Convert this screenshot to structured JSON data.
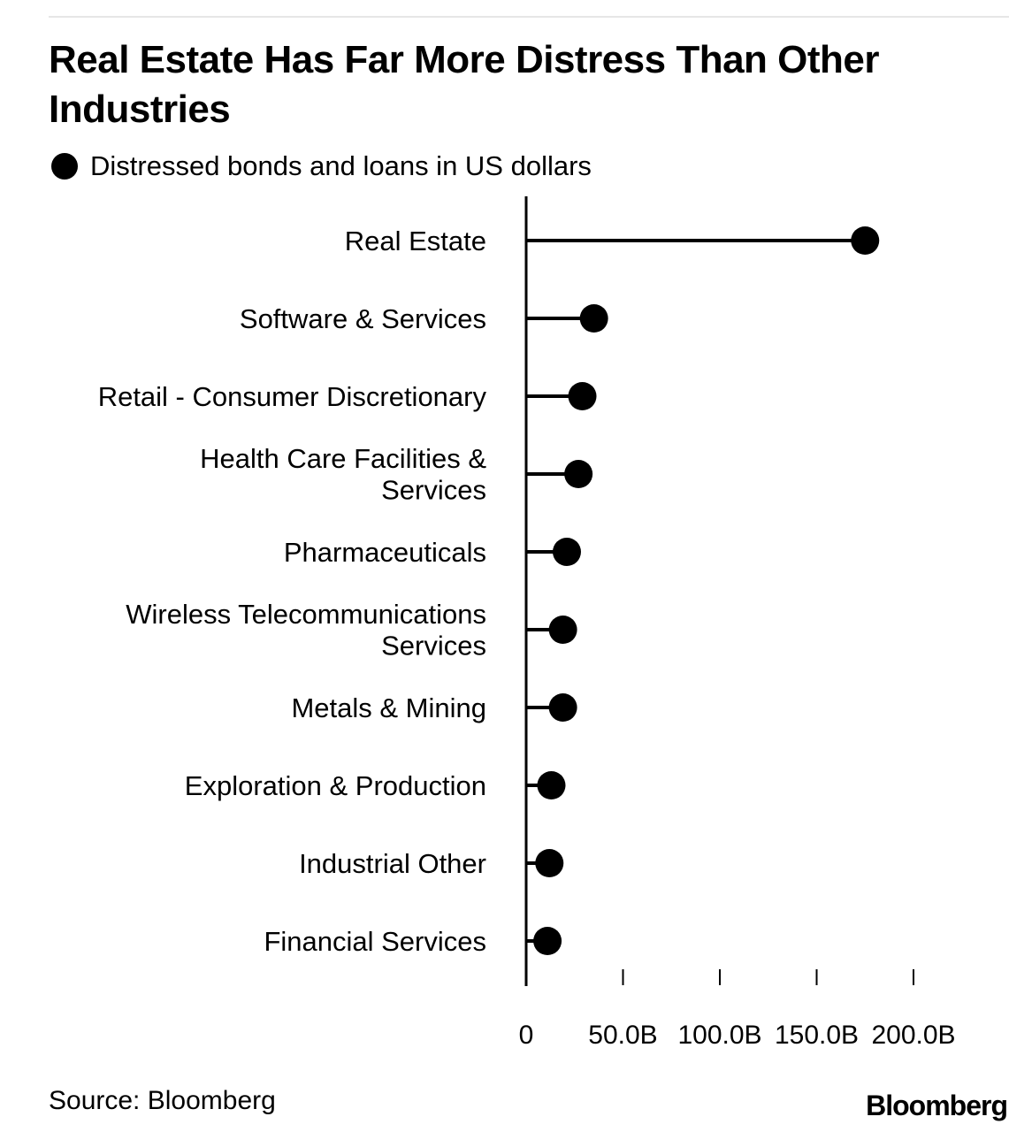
{
  "title": "Real Estate Has Far More Distress Than Other Industries",
  "legend": {
    "label": "Distressed bonds and loans in US dollars"
  },
  "source": "Source: Bloomberg",
  "brand": "Bloomberg",
  "chart_data": {
    "type": "lollipop",
    "orientation": "horizontal",
    "title": "Real Estate Has Far More Distress Than Other Industries",
    "series": [
      {
        "name": "Distressed bonds and loans in US dollars"
      }
    ],
    "categories": [
      [
        "Real Estate"
      ],
      [
        "Software & Services"
      ],
      [
        "Retail - Consumer Discretionary"
      ],
      [
        "Health Care Facilities &",
        "Services"
      ],
      [
        "Pharmaceuticals"
      ],
      [
        "Wireless Telecommunications",
        "Services"
      ],
      [
        "Metals & Mining"
      ],
      [
        "Exploration & Production"
      ],
      [
        "Industrial Other"
      ],
      [
        "Financial Services"
      ]
    ],
    "values": [
      175,
      35,
      29,
      27,
      21,
      19,
      19,
      13,
      12,
      11
    ],
    "unit": "billion USD",
    "xlim": [
      0,
      200
    ],
    "ticks": [
      0,
      50,
      100,
      150,
      200
    ],
    "tick_labels": [
      "0",
      "50.0B",
      "100.0B",
      "150.0B",
      "200.0B"
    ],
    "grid": false,
    "legend_position": "top-left"
  }
}
